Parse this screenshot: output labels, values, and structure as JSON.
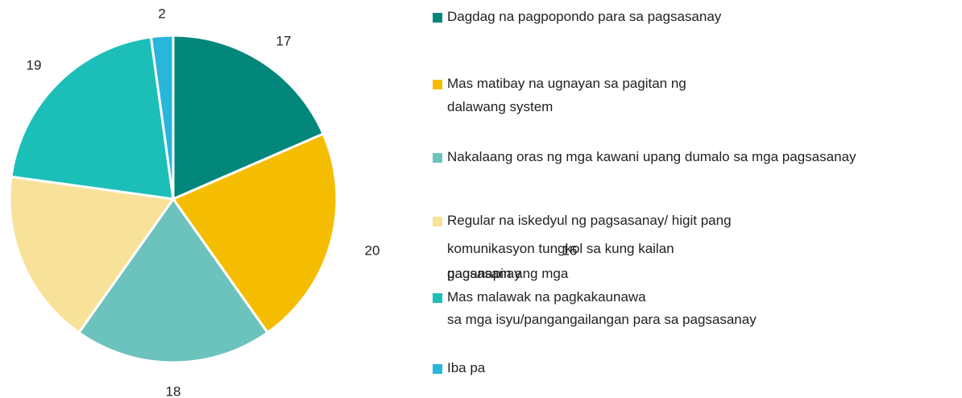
{
  "chart_data": {
    "type": "pie",
    "series": [
      {
        "name": "Dagdag na pagpopondo para sa pagsasanay",
        "color": "#02877a",
        "value": 17
      },
      {
        "name": "Mas matibay na ugnayan sa pagitan ng dalawang system",
        "color": "#f5bd02",
        "value": 20
      },
      {
        "name": "Nakalaang oras ng mga kawani upang dumalo sa mga pagsasanay",
        "color": "#6cc2bd",
        "value": 18
      },
      {
        "name": "Regular na iskedyul ng pagsasanay/ higit pang komunikasyon tungkol sa kung kailan gaganapin ang mga pagsasanay",
        "color": "#f8e29a",
        "value": 16
      },
      {
        "name": "Mas malawak na pagkakaunawa sa mga isyu/pangangailangan para sa pagsasanay",
        "color": "#1cbfb8",
        "value": 19
      },
      {
        "name": "Iba pa",
        "color": "#28b6da",
        "value": 2
      }
    ],
    "legend": "right"
  }
}
